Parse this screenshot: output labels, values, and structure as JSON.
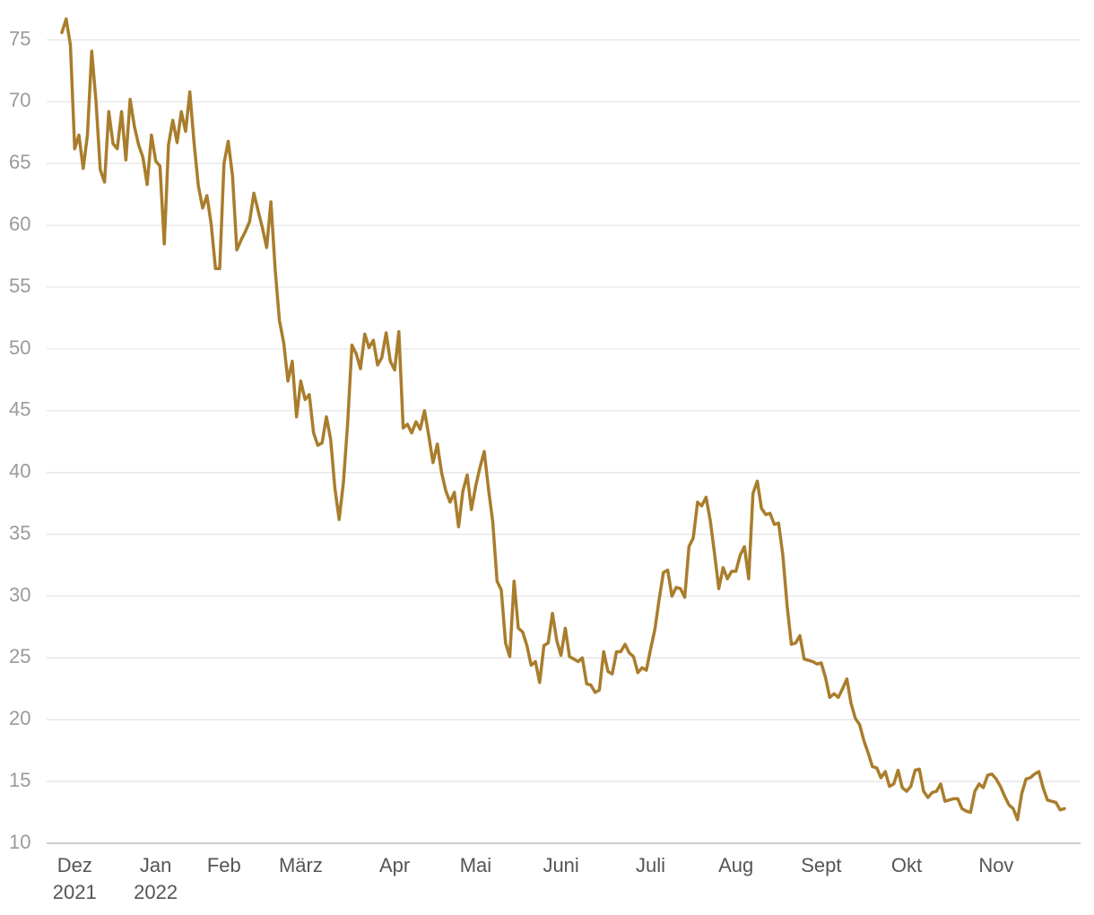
{
  "chart_data": {
    "type": "line",
    "categories": [
      null,
      null,
      null,
      "Dez 2021",
      null,
      null,
      null,
      null,
      null,
      null,
      null,
      null,
      null,
      null,
      null,
      null,
      null,
      null,
      null,
      null,
      null,
      null,
      "Jan 2022",
      null,
      null,
      null,
      null,
      null,
      null,
      null,
      null,
      null,
      null,
      null,
      null,
      null,
      null,
      null,
      "Feb",
      null,
      null,
      null,
      null,
      null,
      null,
      null,
      null,
      null,
      null,
      null,
      null,
      null,
      null,
      null,
      null,
      null,
      "März",
      null,
      null,
      null,
      null,
      null,
      null,
      null,
      null,
      null,
      null,
      null,
      null,
      null,
      null,
      null,
      null,
      null,
      null,
      null,
      null,
      null,
      "Apr",
      null,
      null,
      null,
      null,
      null,
      null,
      null,
      null,
      null,
      null,
      null,
      null,
      null,
      null,
      null,
      null,
      null,
      null,
      "Mai",
      null,
      null,
      null,
      null,
      null,
      null,
      null,
      null,
      null,
      null,
      null,
      null,
      null,
      null,
      null,
      null,
      null,
      null,
      null,
      "Juni",
      null,
      null,
      null,
      null,
      null,
      null,
      null,
      null,
      null,
      null,
      null,
      null,
      null,
      null,
      null,
      null,
      null,
      null,
      null,
      null,
      "Juli",
      null,
      null,
      null,
      null,
      null,
      null,
      null,
      null,
      null,
      null,
      null,
      null,
      null,
      null,
      null,
      null,
      null,
      null,
      null,
      "Aug",
      null,
      null,
      null,
      null,
      null,
      null,
      null,
      null,
      null,
      null,
      null,
      null,
      null,
      null,
      null,
      null,
      null,
      null,
      null,
      "Sept",
      null,
      null,
      null,
      null,
      null,
      null,
      null,
      null,
      null,
      null,
      null,
      null,
      null,
      null,
      null,
      null,
      null,
      null,
      null,
      "Okt",
      null,
      null,
      null,
      null,
      null,
      null,
      null,
      null,
      null,
      null,
      null,
      null,
      null,
      null,
      null,
      null,
      null,
      null,
      null,
      null,
      "Nov",
      null,
      null,
      null,
      null,
      null,
      null,
      null,
      null,
      null,
      null,
      null,
      null,
      null,
      null,
      null,
      null
    ],
    "series": [
      {
        "color": "#a97d2c",
        "values": [
          75.6,
          76.7,
          74.6,
          66.2,
          67.3,
          64.6,
          67.3,
          74.1,
          70,
          64.5,
          63.5,
          69.2,
          66.6,
          66.2,
          69.2,
          65.3,
          70.2,
          68,
          66.5,
          65.5,
          63.3,
          67.3,
          65.2,
          64.8,
          58.5,
          66.5,
          68.5,
          66.7,
          69.2,
          67.6,
          70.8,
          66.6,
          63.2,
          61.4,
          62.4,
          60.1,
          56.5,
          56.5,
          65,
          66.8,
          64,
          58,
          58.8,
          59.5,
          60.3,
          62.6,
          61.2,
          59.8,
          58.2,
          61.9,
          56.4,
          52.3,
          50.5,
          47.4,
          49,
          44.5,
          47.4,
          45.9,
          46.3,
          43.2,
          42.2,
          42.4,
          44.5,
          42.7,
          38.7,
          36.2,
          39.2,
          44,
          50.3,
          49.6,
          48.4,
          51.2,
          50.1,
          50.7,
          48.7,
          49.3,
          51.3,
          49,
          48.3,
          51.4,
          43.6,
          43.9,
          43.2,
          44.1,
          43.5,
          45,
          43,
          40.8,
          42.3,
          40,
          38.5,
          37.6,
          38.4,
          35.6,
          38.5,
          39.8,
          37,
          38.9,
          40.4,
          41.7,
          38.7,
          36,
          31.2,
          30.5,
          26.2,
          25.1,
          31.2,
          27.4,
          27.1,
          26,
          24.4,
          24.7,
          23,
          26,
          26.2,
          28.6,
          26.4,
          25.2,
          27.4,
          25.1,
          24.9,
          24.7,
          25,
          22.9,
          22.8,
          22.2,
          22.4,
          25.5,
          23.9,
          23.7,
          25.5,
          25.5,
          26.1,
          25.4,
          25.1,
          23.8,
          24.2,
          24,
          25.7,
          27.3,
          29.7,
          31.9,
          32.1,
          30,
          30.7,
          30.6,
          29.9,
          34,
          34.7,
          37.6,
          37.3,
          38,
          36.1,
          33.4,
          30.6,
          32.3,
          31.4,
          32,
          32,
          33.3,
          34,
          31.4,
          38.3,
          39.3,
          37.1,
          36.6,
          36.7,
          35.8,
          35.9,
          33.3,
          29.2,
          26.1,
          26.2,
          26.8,
          24.9,
          24.8,
          24.7,
          24.5,
          24.6,
          23.4,
          21.8,
          22.1,
          21.8,
          22.5,
          23.3,
          21.3,
          20.1,
          19.6,
          18.3,
          17.3,
          16.2,
          16.1,
          15.3,
          15.8,
          14.6,
          14.8,
          15.9,
          14.5,
          14.2,
          14.6,
          15.9,
          16,
          14.2,
          13.7,
          14.1,
          14.2,
          14.8,
          13.4,
          13.5,
          13.6,
          13.6,
          12.8,
          12.6,
          12.5,
          14.2,
          14.8,
          14.5,
          15.5,
          15.6,
          15.2,
          14.6,
          13.8,
          13.1,
          12.8,
          11.9,
          14,
          15.2,
          15.3,
          15.6,
          15.8,
          14.5,
          13.5,
          13.4,
          13.3,
          12.7,
          12.8
        ]
      }
    ],
    "ylim": [
      10,
      77
    ],
    "yticks": [
      10,
      15,
      20,
      25,
      30,
      35,
      40,
      45,
      50,
      55,
      60,
      65,
      70,
      75
    ],
    "grid": true
  }
}
